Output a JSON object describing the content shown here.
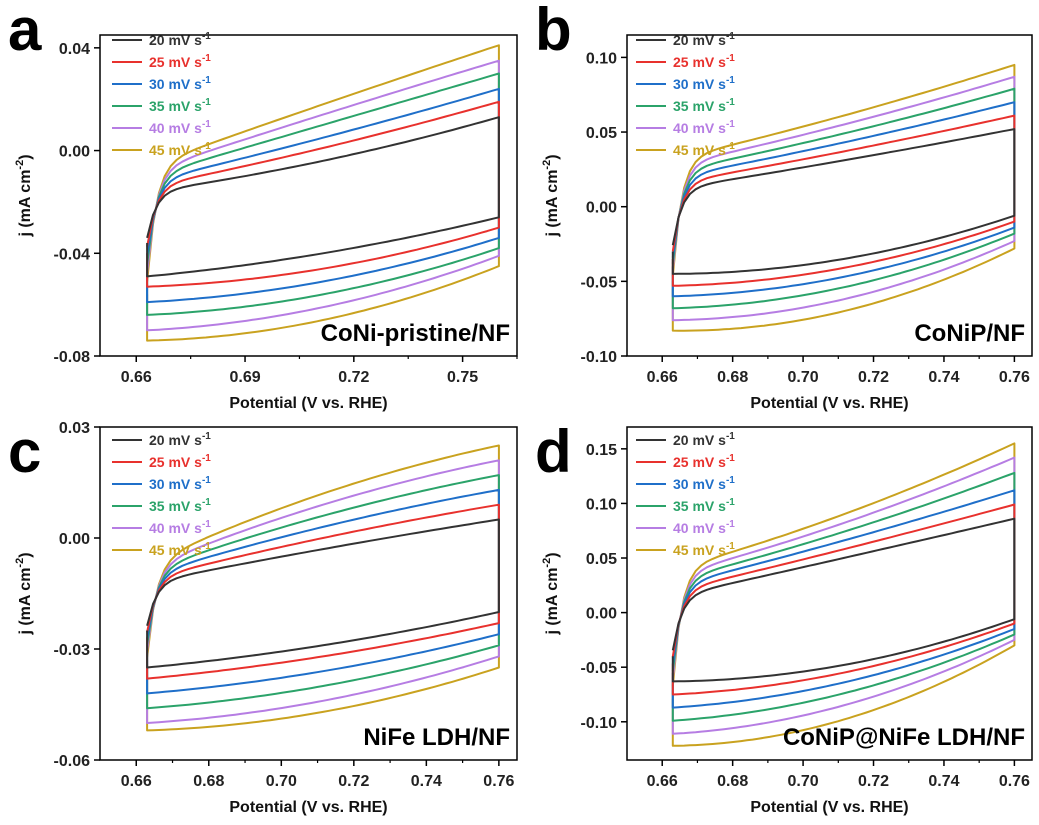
{
  "colors": {
    "20": "#333333",
    "25": "#e8312d",
    "30": "#1f6fc9",
    "35": "#2ba36a",
    "40": "#b67de3",
    "45": "#c9a21f"
  },
  "chart_data": [
    {
      "id": "a",
      "type": "line",
      "letter": "a",
      "sample": "CoNi-pristine/NF",
      "xlabel": "Potential (V vs. RHE)",
      "ylabel": "j (mA cm-2)",
      "xlim": [
        0.65,
        0.765
      ],
      "ylim": [
        -0.08,
        0.045
      ],
      "xticks": [
        0.66,
        0.69,
        0.72,
        0.75
      ],
      "xtick_labels": [
        "0.66",
        "0.69",
        "0.72",
        "0.75"
      ],
      "yticks": [
        -0.08,
        -0.04,
        0.0,
        0.04
      ],
      "ytick_labels": [
        "-0.08",
        "-0.04",
        "0.00",
        "0.04"
      ],
      "x_range": [
        0.663,
        0.76
      ],
      "series": [
        {
          "name": "20 mV s-1",
          "rate": "20",
          "anodic": [
            -0.016,
            -0.004,
            0.013
          ],
          "cathodic": [
            -0.026,
            -0.04,
            -0.049
          ],
          "turn_min": -0.036
        },
        {
          "name": "25 mV s-1",
          "rate": "25",
          "anodic": [
            -0.014,
            0.001,
            0.019
          ],
          "cathodic": [
            -0.03,
            -0.046,
            -0.053
          ],
          "turn_min": -0.04
        },
        {
          "name": "30 mV s-1",
          "rate": "30",
          "anodic": [
            -0.012,
            0.005,
            0.024
          ],
          "cathodic": [
            -0.034,
            -0.051,
            -0.059
          ],
          "turn_min": -0.044
        },
        {
          "name": "35 mV s-1",
          "rate": "35",
          "anodic": [
            -0.01,
            0.01,
            0.03
          ],
          "cathodic": [
            -0.038,
            -0.056,
            -0.064
          ],
          "turn_min": -0.048
        },
        {
          "name": "40 mV s-1",
          "rate": "40",
          "anodic": [
            -0.008,
            0.014,
            0.035
          ],
          "cathodic": [
            -0.041,
            -0.061,
            -0.07
          ],
          "turn_min": -0.052
        },
        {
          "name": "45 mV s-1",
          "rate": "45",
          "anodic": [
            -0.006,
            0.018,
            0.041
          ],
          "cathodic": [
            -0.045,
            -0.066,
            -0.074
          ],
          "turn_min": -0.056
        }
      ]
    },
    {
      "id": "b",
      "type": "line",
      "letter": "b",
      "sample": "CoNiP/NF",
      "xlabel": "Potential (V vs. RHE)",
      "ylabel": "j (mA cm-2)",
      "xlim": [
        0.65,
        0.765
      ],
      "ylim": [
        -0.1,
        0.115
      ],
      "xticks": [
        0.66,
        0.68,
        0.7,
        0.72,
        0.74,
        0.76
      ],
      "xtick_labels": [
        "0.66",
        "0.68",
        "0.70",
        "0.72",
        "0.74",
        "0.76"
      ],
      "yticks": [
        -0.1,
        -0.05,
        0.0,
        0.05,
        0.1
      ],
      "ytick_labels": [
        "-0.10",
        "-0.05",
        "0.00",
        "0.05",
        "0.10"
      ],
      "x_range": [
        0.663,
        0.76
      ],
      "series": [
        {
          "name": "20 mV s-1",
          "rate": "20",
          "anodic": [
            0.012,
            0.031,
            0.052
          ],
          "cathodic": [
            -0.006,
            -0.035,
            -0.045
          ],
          "turn_min": -0.03
        },
        {
          "name": "25 mV s-1",
          "rate": "25",
          "anodic": [
            0.016,
            0.037,
            0.061
          ],
          "cathodic": [
            -0.01,
            -0.041,
            -0.053
          ],
          "turn_min": -0.035
        },
        {
          "name": "30 mV s-1",
          "rate": "30",
          "anodic": [
            0.02,
            0.043,
            0.07
          ],
          "cathodic": [
            -0.014,
            -0.047,
            -0.06
          ],
          "turn_min": -0.04
        },
        {
          "name": "35 mV s-1",
          "rate": "35",
          "anodic": [
            0.024,
            0.049,
            0.079
          ],
          "cathodic": [
            -0.018,
            -0.054,
            -0.068
          ],
          "turn_min": -0.045
        },
        {
          "name": "40 mV s-1",
          "rate": "40",
          "anodic": [
            0.028,
            0.055,
            0.087
          ],
          "cathodic": [
            -0.023,
            -0.062,
            -0.076
          ],
          "turn_min": -0.05
        },
        {
          "name": "45 mV s-1",
          "rate": "45",
          "anodic": [
            0.032,
            0.061,
            0.095
          ],
          "cathodic": [
            -0.028,
            -0.07,
            -0.083
          ],
          "turn_min": -0.055
        }
      ]
    },
    {
      "id": "c",
      "type": "line",
      "letter": "c",
      "sample": "NiFe LDH/NF",
      "xlabel": "Potential (V vs. RHE)",
      "ylabel": "j (mA cm-2)",
      "xlim": [
        0.65,
        0.765
      ],
      "ylim": [
        -0.06,
        0.03
      ],
      "xticks": [
        0.66,
        0.68,
        0.7,
        0.72,
        0.74,
        0.76
      ],
      "xtick_labels": [
        "0.66",
        "0.68",
        "0.70",
        "0.72",
        "0.74",
        "0.76"
      ],
      "yticks": [
        -0.06,
        -0.03,
        0.0,
        0.03
      ],
      "ytick_labels": [
        "-0.06",
        "-0.03",
        "0.00",
        "0.03"
      ],
      "x_range": [
        0.663,
        0.76
      ],
      "series": [
        {
          "name": "20 mV s-1",
          "rate": "20",
          "anodic": [
            -0.012,
            -0.003,
            0.005
          ],
          "cathodic": [
            -0.02,
            -0.029,
            -0.035
          ],
          "turn_min": -0.025
        },
        {
          "name": "25 mV s-1",
          "rate": "25",
          "anodic": [
            -0.011,
            0.0,
            0.009
          ],
          "cathodic": [
            -0.023,
            -0.032,
            -0.038
          ],
          "turn_min": -0.027
        },
        {
          "name": "30 mV s-1",
          "rate": "30",
          "anodic": [
            -0.01,
            0.003,
            0.013
          ],
          "cathodic": [
            -0.026,
            -0.036,
            -0.042
          ],
          "turn_min": -0.029
        },
        {
          "name": "35 mV s-1",
          "rate": "35",
          "anodic": [
            -0.009,
            0.006,
            0.017
          ],
          "cathodic": [
            -0.029,
            -0.04,
            -0.046
          ],
          "turn_min": -0.031
        },
        {
          "name": "40 mV s-1",
          "rate": "40",
          "anodic": [
            -0.008,
            0.009,
            0.021
          ],
          "cathodic": [
            -0.032,
            -0.044,
            -0.05
          ],
          "turn_min": -0.033
        },
        {
          "name": "45 mV s-1",
          "rate": "45",
          "anodic": [
            -0.007,
            0.012,
            0.025
          ],
          "cathodic": [
            -0.035,
            -0.047,
            -0.052
          ],
          "turn_min": -0.035
        }
      ]
    },
    {
      "id": "d",
      "type": "line",
      "letter": "d",
      "sample": "CoNiP@NiFe LDH/NF",
      "xlabel": "Potential (V vs. RHE)",
      "ylabel": "j (mA cm-2)",
      "xlim": [
        0.65,
        0.765
      ],
      "ylim": [
        -0.135,
        0.17
      ],
      "xticks": [
        0.66,
        0.68,
        0.7,
        0.72,
        0.74,
        0.76
      ],
      "xtick_labels": [
        "0.66",
        "0.68",
        "0.70",
        "0.72",
        "0.74",
        "0.76"
      ],
      "yticks": [
        -0.1,
        -0.05,
        0.0,
        0.05,
        0.1,
        0.15
      ],
      "ytick_labels": [
        "-0.10",
        "-0.05",
        "0.00",
        "0.05",
        "0.10",
        "0.15"
      ],
      "x_range": [
        0.663,
        0.76
      ],
      "series": [
        {
          "name": "20 mV s-1",
          "rate": "20",
          "anodic": [
            0.015,
            0.05,
            0.086
          ],
          "cathodic": [
            -0.006,
            -0.048,
            -0.063
          ],
          "turn_min": -0.04
        },
        {
          "name": "25 mV s-1",
          "rate": "25",
          "anodic": [
            0.02,
            0.058,
            0.099
          ],
          "cathodic": [
            -0.01,
            -0.055,
            -0.075
          ],
          "turn_min": -0.047
        },
        {
          "name": "30 mV s-1",
          "rate": "30",
          "anodic": [
            0.025,
            0.066,
            0.112
          ],
          "cathodic": [
            -0.015,
            -0.064,
            -0.087
          ],
          "turn_min": -0.055
        },
        {
          "name": "35 mV s-1",
          "rate": "35",
          "anodic": [
            0.03,
            0.074,
            0.128
          ],
          "cathodic": [
            -0.02,
            -0.074,
            -0.099
          ],
          "turn_min": -0.063
        },
        {
          "name": "40 mV s-1",
          "rate": "40",
          "anodic": [
            0.035,
            0.082,
            0.142
          ],
          "cathodic": [
            -0.025,
            -0.085,
            -0.111
          ],
          "turn_min": -0.071
        },
        {
          "name": "45 mV s-1",
          "rate": "45",
          "anodic": [
            0.04,
            0.09,
            0.155
          ],
          "cathodic": [
            -0.03,
            -0.098,
            -0.122
          ],
          "turn_min": -0.079
        }
      ]
    }
  ]
}
